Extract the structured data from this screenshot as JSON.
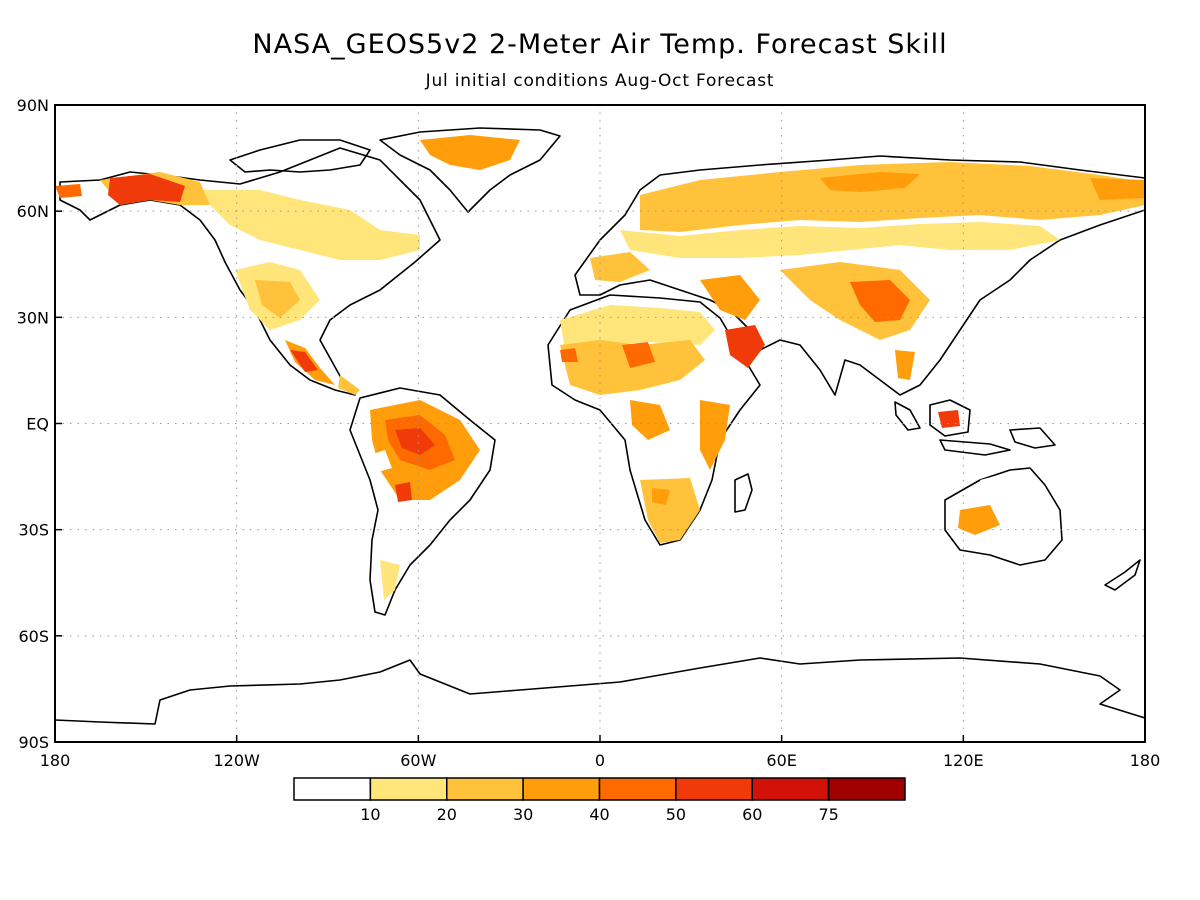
{
  "title": "NASA_GEOS5v2 2-Meter Air Temp. Forecast Skill",
  "subtitle": "Jul initial conditions  Aug-Oct Forecast",
  "map": {
    "lon_range": [
      -180,
      180
    ],
    "lat_range": [
      -90,
      90
    ],
    "lon_ticks": [
      {
        "value": -180,
        "label": "180"
      },
      {
        "value": -120,
        "label": "120W"
      },
      {
        "value": -60,
        "label": "60W"
      },
      {
        "value": 0,
        "label": "0"
      },
      {
        "value": 60,
        "label": "60E"
      },
      {
        "value": 120,
        "label": "120E"
      },
      {
        "value": 180,
        "label": "180"
      }
    ],
    "lat_ticks": [
      {
        "value": 90,
        "label": "90N"
      },
      {
        "value": 60,
        "label": "60N"
      },
      {
        "value": 30,
        "label": "30N"
      },
      {
        "value": 0,
        "label": "EQ"
      },
      {
        "value": -30,
        "label": "30S"
      },
      {
        "value": -60,
        "label": "60S"
      },
      {
        "value": -90,
        "label": "90S"
      }
    ],
    "grid": "dotted"
  },
  "colorbar": {
    "levels": [
      "10",
      "20",
      "30",
      "40",
      "50",
      "60",
      "75"
    ],
    "colors": [
      "#ffffff",
      "#ffe57a",
      "#ffc23a",
      "#ff9d0a",
      "#ff6a00",
      "#f03a0a",
      "#d21208",
      "#a00000"
    ]
  }
}
